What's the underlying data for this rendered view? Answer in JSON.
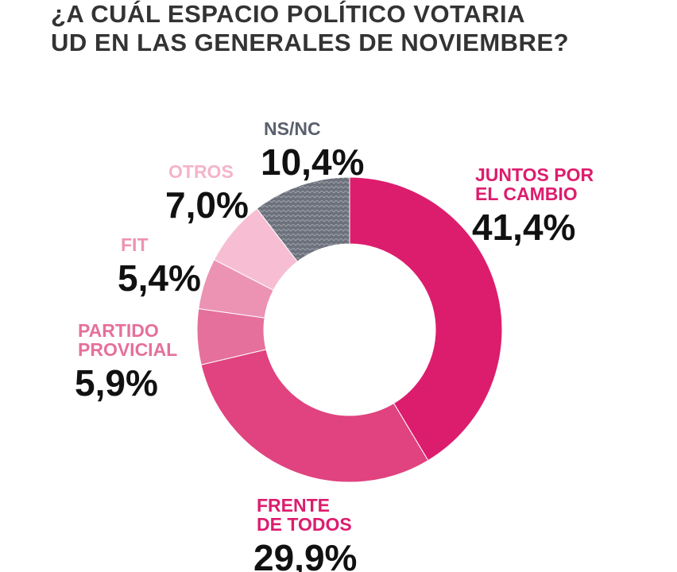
{
  "title": "¿A CUÁL ESPACIO POLÍTICO VOTARIA\n UD EN LAS GENERALES DE NOVIEMBRE?",
  "chart_data": {
    "type": "pie",
    "donut": true,
    "slices": [
      {
        "label": "JUNTOS POR\nEL CAMBIO",
        "value": 41.4,
        "display": "41,4%",
        "color": "#dc1d6e",
        "label_color": "#dc1d6e"
      },
      {
        "label": "FRENTE\nDE TODOS",
        "value": 29.9,
        "display": "29,9%",
        "color": "#e0437f",
        "label_color": "#dc1d6e"
      },
      {
        "label": "PARTIDO\nPROVICIAL",
        "value": 5.9,
        "display": "5,9%",
        "color": "#e5709b",
        "label_color": "#e5709b"
      },
      {
        "label": "FIT",
        "value": 5.4,
        "display": "5,4%",
        "color": "#ec93b3",
        "label_color": "#ec93b3"
      },
      {
        "label": "OTROS",
        "value": 7.0,
        "display": "7,0%",
        "color": "#f7bed3",
        "label_color": "#f5b3cb"
      },
      {
        "label": "NS/NC",
        "value": 10.4,
        "display": "10,4%",
        "color": "#6d717c",
        "label_color": "#5a5f6c"
      }
    ]
  }
}
